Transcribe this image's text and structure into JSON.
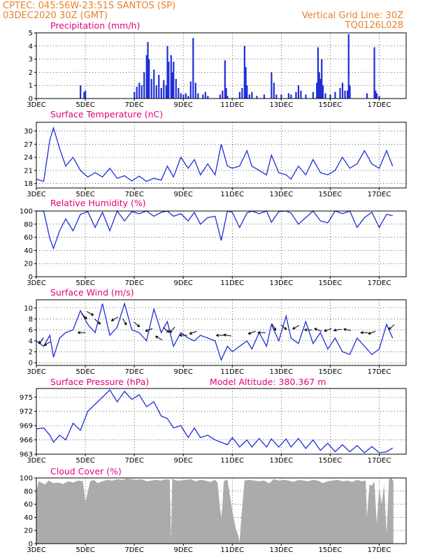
{
  "header": {
    "line1": "CPTEC:   045:56W-23:51S   SANTOS (SP)",
    "line2": "03DEC2020 30Z (GMT)",
    "grid_note": "Vertical Grid Line: 30Z",
    "code": "TQ0126L028"
  },
  "x_ticks": [
    "3DEC",
    "5DEC",
    "7DEC",
    "9DEC",
    "11DEC",
    "13DEC",
    "15DEC",
    "17DEC"
  ],
  "colors": {
    "line": "#1f2fd6",
    "title": "#e4007c",
    "header": "#e8812a",
    "cloud": "#ababab"
  },
  "chart_data": [
    {
      "type": "bar",
      "title": "Precipitation (mm/h)",
      "ylim": [
        0,
        5
      ],
      "yticks": [
        "0",
        "1",
        "2",
        "3",
        "4",
        "5"
      ],
      "x_days": [
        4.8,
        4.95,
        5.0,
        7.0,
        7.1,
        7.2,
        7.3,
        7.4,
        7.5,
        7.55,
        7.6,
        7.7,
        7.8,
        7.9,
        8.0,
        8.1,
        8.2,
        8.3,
        8.35,
        8.4,
        8.5,
        8.55,
        8.6,
        8.7,
        8.8,
        8.9,
        9.0,
        9.1,
        9.2,
        9.3,
        9.4,
        9.5,
        9.6,
        9.8,
        9.9,
        10.0,
        10.5,
        10.6,
        10.7,
        10.75,
        10.8,
        11.3,
        11.4,
        11.5,
        11.55,
        11.6,
        11.7,
        11.8,
        12.0,
        12.3,
        12.6,
        12.7,
        12.8,
        13.0,
        13.3,
        13.4,
        13.6,
        13.7,
        13.8,
        14.0,
        14.3,
        14.45,
        14.5,
        14.55,
        14.6,
        14.65,
        14.7,
        14.8,
        15.0,
        15.2,
        15.4,
        15.5,
        15.6,
        15.7,
        15.75,
        15.8,
        16.5,
        16.8,
        16.85,
        16.9,
        17.0
      ],
      "values": [
        1.0,
        0.5,
        0.6,
        0.5,
        0.9,
        1.2,
        1.0,
        2.0,
        3.3,
        4.3,
        3.0,
        1.5,
        2.2,
        1.0,
        1.8,
        0.8,
        1.4,
        1.0,
        4.0,
        2.8,
        3.3,
        2.0,
        2.8,
        1.5,
        0.8,
        0.4,
        0.3,
        0.4,
        0.2,
        1.3,
        4.6,
        1.2,
        0.4,
        0.3,
        0.5,
        0.2,
        0.3,
        0.6,
        2.9,
        0.8,
        0.2,
        0.5,
        0.8,
        4.0,
        2.4,
        1.0,
        0.3,
        0.5,
        0.2,
        0.3,
        2.0,
        1.2,
        0.3,
        0.3,
        0.4,
        0.3,
        0.5,
        1.0,
        0.6,
        0.3,
        0.5,
        1.2,
        3.9,
        2.0,
        1.5,
        3.0,
        1.0,
        0.4,
        0.3,
        0.5,
        0.8,
        1.2,
        0.6,
        0.6,
        4.9,
        1.0,
        0.4,
        3.9,
        0.6,
        0.4,
        0.2
      ]
    },
    {
      "type": "line",
      "title": "Surface Temperature (nC)",
      "ylim": [
        17,
        32
      ],
      "yticks": [
        "18",
        "21",
        "24",
        "27",
        "30"
      ],
      "x_days": [
        3.0,
        3.3,
        3.55,
        3.7,
        3.95,
        4.2,
        4.5,
        4.8,
        5.1,
        5.4,
        5.7,
        6.0,
        6.3,
        6.6,
        6.9,
        7.2,
        7.5,
        7.8,
        8.1,
        8.35,
        8.6,
        8.9,
        9.2,
        9.45,
        9.7,
        10.0,
        10.3,
        10.55,
        10.8,
        11.0,
        11.3,
        11.6,
        11.8,
        12.1,
        12.4,
        12.6,
        12.9,
        13.2,
        13.4,
        13.7,
        14.0,
        14.3,
        14.6,
        14.9,
        15.2,
        15.5,
        15.8,
        16.1,
        16.4,
        16.7,
        17.0,
        17.3,
        17.55
      ],
      "values": [
        19.0,
        18.5,
        28.0,
        30.7,
        26.0,
        22.0,
        24.0,
        21.0,
        19.5,
        20.5,
        19.5,
        21.5,
        19.2,
        19.8,
        18.6,
        19.7,
        18.5,
        19.2,
        18.8,
        22.0,
        19.5,
        24.0,
        21.5,
        23.5,
        20.0,
        22.5,
        20.0,
        27.0,
        22.0,
        21.5,
        22.0,
        25.5,
        22.0,
        21.0,
        20.0,
        24.5,
        20.5,
        20.0,
        19.0,
        22.0,
        20.0,
        23.5,
        20.5,
        20.0,
        21.0,
        24.0,
        21.5,
        22.5,
        25.5,
        22.5,
        21.5,
        25.5,
        22.0
      ]
    },
    {
      "type": "line",
      "title": "Relative Humidity (%)",
      "ylim": [
        0,
        100
      ],
      "yticks": [
        "0",
        "20",
        "40",
        "60",
        "80",
        "100"
      ],
      "x_days": [
        3.0,
        3.3,
        3.55,
        3.7,
        3.95,
        4.2,
        4.5,
        4.8,
        5.1,
        5.4,
        5.7,
        6.0,
        6.3,
        6.6,
        6.9,
        7.2,
        7.5,
        7.8,
        8.1,
        8.35,
        8.6,
        8.9,
        9.2,
        9.45,
        9.7,
        10.0,
        10.3,
        10.55,
        10.8,
        11.0,
        11.3,
        11.6,
        11.8,
        12.1,
        12.4,
        12.6,
        12.9,
        13.2,
        13.4,
        13.7,
        14.0,
        14.3,
        14.6,
        14.9,
        15.2,
        15.5,
        15.8,
        16.1,
        16.4,
        16.7,
        17.0,
        17.3,
        17.55
      ],
      "values": [
        100,
        100,
        58,
        43,
        70,
        88,
        70,
        95,
        99,
        75,
        98,
        70,
        100,
        85,
        99,
        96,
        100,
        92,
        98,
        100,
        92,
        96,
        85,
        98,
        80,
        90,
        92,
        55,
        100,
        98,
        75,
        97,
        100,
        96,
        100,
        83,
        99,
        100,
        97,
        80,
        90,
        100,
        85,
        82,
        100,
        96,
        100,
        75,
        90,
        98,
        75,
        95,
        93
      ]
    },
    {
      "type": "line",
      "title": "Surface Wind (m/s)",
      "ylim": [
        -0.5,
        11.5
      ],
      "yticks": [
        "0",
        "2",
        "4",
        "6",
        "8",
        "10"
      ],
      "x_days": [
        3.0,
        3.3,
        3.55,
        3.7,
        3.95,
        4.2,
        4.5,
        4.8,
        5.1,
        5.4,
        5.7,
        6.0,
        6.3,
        6.6,
        6.9,
        7.2,
        7.5,
        7.8,
        8.1,
        8.35,
        8.6,
        8.9,
        9.2,
        9.45,
        9.7,
        10.0,
        10.3,
        10.55,
        10.8,
        11.0,
        11.3,
        11.6,
        11.8,
        12.1,
        12.4,
        12.6,
        12.9,
        13.2,
        13.4,
        13.7,
        14.0,
        14.3,
        14.6,
        14.9,
        15.2,
        15.5,
        15.8,
        16.1,
        16.4,
        16.7,
        17.0,
        17.3,
        17.55
      ],
      "values": [
        4.0,
        3.0,
        5.0,
        1.0,
        4.5,
        5.5,
        6.0,
        9.5,
        7.0,
        5.5,
        10.8,
        5.0,
        6.5,
        10.8,
        6.0,
        5.5,
        4.0,
        9.8,
        5.5,
        7.5,
        3.0,
        5.5,
        4.5,
        4.0,
        5.0,
        4.5,
        4.0,
        0.5,
        3.0,
        2.0,
        3.0,
        4.0,
        2.5,
        5.5,
        3.0,
        7.0,
        4.0,
        8.5,
        4.5,
        3.5,
        7.5,
        3.5,
        5.5,
        2.5,
        4.5,
        2.0,
        1.5,
        4.5,
        3.0,
        1.5,
        2.5,
        7.0,
        4.5
      ]
    },
    {
      "type": "line",
      "title": "Surface Pressure (hPa)",
      "ylim": [
        963,
        976.8
      ],
      "yticks": [
        "963",
        "966",
        "969",
        "972",
        "975"
      ],
      "x_days": [
        3.0,
        3.3,
        3.55,
        3.7,
        3.95,
        4.2,
        4.5,
        4.8,
        5.1,
        5.4,
        5.7,
        6.0,
        6.3,
        6.6,
        6.9,
        7.2,
        7.5,
        7.8,
        8.1,
        8.35,
        8.6,
        8.9,
        9.2,
        9.45,
        9.7,
        10.0,
        10.3,
        10.55,
        10.8,
        11.0,
        11.3,
        11.6,
        11.8,
        12.1,
        12.4,
        12.6,
        12.9,
        13.2,
        13.4,
        13.7,
        14.0,
        14.3,
        14.6,
        14.9,
        15.2,
        15.5,
        15.8,
        16.1,
        16.4,
        16.7,
        17.0,
        17.3,
        17.55
      ],
      "values": [
        968.3,
        968.5,
        967.0,
        965.5,
        967.0,
        966.0,
        969.5,
        968.0,
        972.0,
        973.5,
        975.0,
        976.5,
        974.0,
        976.2,
        974.5,
        975.5,
        973.0,
        974.0,
        971.0,
        970.5,
        968.5,
        969.0,
        966.5,
        968.5,
        966.5,
        967.0,
        966.0,
        965.5,
        965.0,
        966.5,
        964.5,
        966.0,
        964.5,
        966.3,
        964.5,
        966.2,
        964.5,
        966.2,
        964.5,
        966.3,
        964.2,
        966.0,
        963.8,
        965.3,
        963.5,
        965.0,
        963.5,
        964.8,
        963.3,
        964.6,
        963.3,
        963.5,
        964.3
      ]
    },
    {
      "type": "area",
      "title": "Cloud Cover (%)",
      "ylim": [
        0,
        100
      ],
      "yticks": [
        "0",
        "20",
        "40",
        "60",
        "80",
        "100"
      ],
      "x_days": [
        3.0,
        3.1,
        3.25,
        3.35,
        3.5,
        3.7,
        3.9,
        4.1,
        4.3,
        4.5,
        4.7,
        4.9,
        5.0,
        5.2,
        5.35,
        5.5,
        5.7,
        5.9,
        6.1,
        6.3,
        6.5,
        6.7,
        6.9,
        7.1,
        7.3,
        7.5,
        7.7,
        7.9,
        8.1,
        8.3,
        8.45,
        8.5,
        8.55,
        8.7,
        8.9,
        9.1,
        9.3,
        9.5,
        9.7,
        9.9,
        10.1,
        10.3,
        10.4,
        10.5,
        10.55,
        10.6,
        10.65,
        10.8,
        11.0,
        11.15,
        11.25,
        11.3,
        11.35,
        11.5,
        11.7,
        11.9,
        12.1,
        12.3,
        12.5,
        12.7,
        12.9,
        13.1,
        13.3,
        13.5,
        13.7,
        13.9,
        14.1,
        14.3,
        14.5,
        14.7,
        14.9,
        15.1,
        15.3,
        15.5,
        15.7,
        15.9,
        16.1,
        16.3,
        16.45,
        16.5,
        16.6,
        16.7,
        16.8,
        16.9,
        17.0,
        17.1,
        17.2,
        17.3,
        17.4,
        17.5,
        17.58
      ],
      "values": [
        80,
        95,
        92,
        90,
        96,
        92,
        93,
        91,
        95,
        93,
        96,
        95,
        63,
        95,
        97,
        92,
        95,
        97,
        96,
        98,
        97,
        99,
        98,
        97,
        98,
        95,
        96,
        97,
        96,
        98,
        97,
        5,
        99,
        96,
        96,
        97,
        98,
        95,
        97,
        96,
        94,
        97,
        93,
        55,
        40,
        60,
        95,
        98,
        50,
        22,
        12,
        2,
        30,
        96,
        97,
        96,
        95,
        96,
        92,
        98,
        96,
        97,
        96,
        94,
        97,
        96,
        95,
        97,
        96,
        92,
        95,
        96,
        97,
        95,
        96,
        94,
        97,
        95,
        96,
        40,
        90,
        88,
        95,
        30,
        85,
        60,
        90,
        15,
        98,
        100,
        95
      ]
    }
  ],
  "panel_titles": [
    "Precipitation (mm/h)",
    "Surface Temperature (nC)",
    "Relative Humidity (%)",
    "Surface Wind (m/s)",
    "Surface Pressure (hPa)",
    "Cloud Cover (%)"
  ],
  "model_altitude": "Model Altitude: 380.367 m",
  "wind_vectors": [
    {
      "day": 3.2,
      "value": 4.0,
      "deg": 230
    },
    {
      "day": 3.45,
      "value": 3.5,
      "deg": 210
    },
    {
      "day": 4.85,
      "value": 5.5,
      "deg": 180
    },
    {
      "day": 4.95,
      "value": 8.5,
      "deg": 315
    },
    {
      "day": 5.2,
      "value": 9.0,
      "deg": 330
    },
    {
      "day": 5.5,
      "value": 7.5,
      "deg": 320
    },
    {
      "day": 6.2,
      "value": 8.0,
      "deg": 210
    },
    {
      "day": 6.6,
      "value": 7.5,
      "deg": 300
    },
    {
      "day": 7.1,
      "value": 7.0,
      "deg": 320
    },
    {
      "day": 7.6,
      "value": 6.0,
      "deg": 200
    },
    {
      "day": 8.0,
      "value": 4.5,
      "deg": 150
    },
    {
      "day": 8.3,
      "value": 6.0,
      "deg": 320
    },
    {
      "day": 8.55,
      "value": 6.0,
      "deg": 230
    },
    {
      "day": 9.0,
      "value": 5.0,
      "deg": 180
    },
    {
      "day": 9.4,
      "value": 5.5,
      "deg": 200
    },
    {
      "day": 10.5,
      "value": 5.0,
      "deg": 180
    },
    {
      "day": 10.8,
      "value": 5.0,
      "deg": 170
    },
    {
      "day": 11.8,
      "value": 5.5,
      "deg": 200
    },
    {
      "day": 12.2,
      "value": 5.5,
      "deg": 180
    },
    {
      "day": 12.7,
      "value": 6.5,
      "deg": 300
    },
    {
      "day": 13.1,
      "value": 6.5,
      "deg": 320
    },
    {
      "day": 13.6,
      "value": 6.5,
      "deg": 210
    },
    {
      "day": 14.1,
      "value": 6.0,
      "deg": 180
    },
    {
      "day": 14.5,
      "value": 6.0,
      "deg": 160
    },
    {
      "day": 14.9,
      "value": 6.0,
      "deg": 200
    },
    {
      "day": 15.3,
      "value": 6.0,
      "deg": 190
    },
    {
      "day": 15.7,
      "value": 6.0,
      "deg": 170
    },
    {
      "day": 16.4,
      "value": 5.5,
      "deg": 180
    },
    {
      "day": 16.7,
      "value": 5.5,
      "deg": 200
    },
    {
      "day": 17.5,
      "value": 6.5,
      "deg": 220
    }
  ]
}
